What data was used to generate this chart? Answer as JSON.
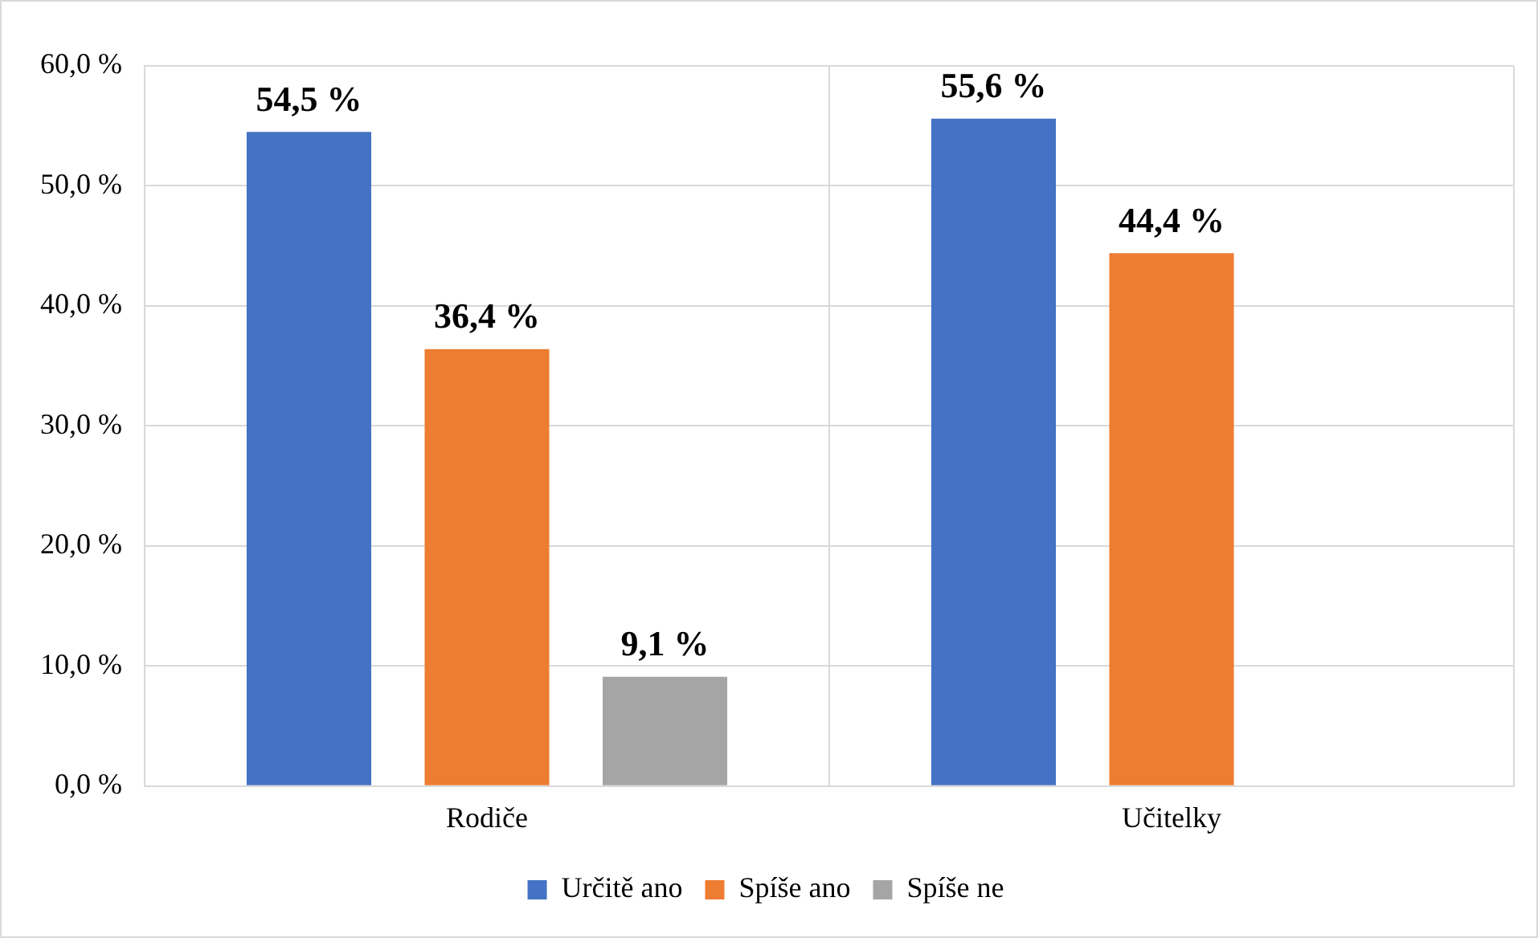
{
  "chart_data": {
    "type": "bar",
    "categories": [
      "Rodiče",
      "Učitelky"
    ],
    "series": [
      {
        "name": "Určitě ano",
        "color": "#4472c4",
        "values": [
          54.5,
          55.6
        ],
        "value_labels": [
          "54,5 %",
          "55,6 %"
        ]
      },
      {
        "name": "Spíše ano",
        "color": "#ed7d31",
        "values": [
          36.4,
          44.4
        ],
        "value_labels": [
          "36,4 %",
          "44,4 %"
        ]
      },
      {
        "name": "Spíše ne",
        "color": "#a5a5a5",
        "values": [
          9.1,
          null
        ],
        "value_labels": [
          "9,1 %",
          null
        ]
      }
    ],
    "ylim": [
      0,
      60
    ],
    "yticks": [
      {
        "value": 0,
        "label": "0,0 %"
      },
      {
        "value": 10,
        "label": "10,0 %"
      },
      {
        "value": 20,
        "label": "20,0 %"
      },
      {
        "value": 30,
        "label": "30,0 %"
      },
      {
        "value": 40,
        "label": "40,0 %"
      },
      {
        "value": 50,
        "label": "50,0 %"
      },
      {
        "value": 60,
        "label": "60,0 %"
      }
    ],
    "grid": true,
    "legend": "bottom"
  }
}
